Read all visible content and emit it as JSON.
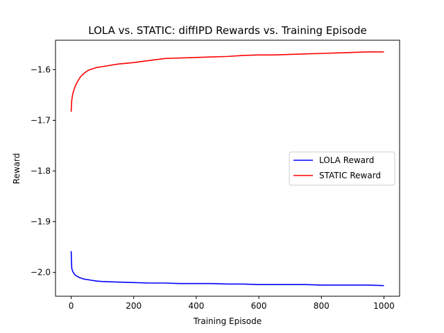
{
  "chart_data": {
    "type": "line",
    "title": "LOLA vs. STATIC: diffIPD Rewards vs. Training Episode",
    "xlabel": "Training Episode",
    "ylabel": "Reward",
    "xlim": [
      -50,
      1050
    ],
    "ylim": [
      -2.047,
      -1.542
    ],
    "xticks": [
      0,
      200,
      400,
      600,
      800,
      1000
    ],
    "xtick_labels": [
      "0",
      "200",
      "400",
      "600",
      "800",
      "1000"
    ],
    "yticks": [
      -2.0,
      -1.9,
      -1.8,
      -1.7,
      -1.6
    ],
    "ytick_labels": [
      "−2.0",
      "−1.9",
      "−1.8",
      "−1.7",
      "−1.6"
    ],
    "grid": false,
    "legend_position": "center-right",
    "series": [
      {
        "name": "LOLA Reward",
        "color": "#0000ff",
        "x": [
          0,
          2,
          5,
          10,
          15,
          20,
          30,
          40,
          50,
          60,
          80,
          100,
          150,
          200,
          250,
          300,
          350,
          400,
          450,
          500,
          550,
          600,
          650,
          700,
          750,
          800,
          850,
          900,
          950,
          1000
        ],
        "y": [
          -1.958,
          -1.992,
          -1.998,
          -2.003,
          -2.006,
          -2.008,
          -2.011,
          -2.013,
          -2.014,
          -2.015,
          -2.017,
          -2.018,
          -2.019,
          -2.02,
          -2.021,
          -2.021,
          -2.022,
          -2.022,
          -2.022,
          -2.023,
          -2.023,
          -2.024,
          -2.024,
          -2.024,
          -2.024,
          -2.025,
          -2.025,
          -2.025,
          -2.025,
          -2.026
        ]
      },
      {
        "name": "STATIC Reward",
        "color": "#ff0000",
        "x": [
          0,
          2,
          5,
          10,
          15,
          20,
          30,
          40,
          50,
          60,
          80,
          100,
          150,
          200,
          250,
          300,
          350,
          400,
          450,
          500,
          550,
          600,
          650,
          700,
          750,
          800,
          850,
          900,
          950,
          1000
        ],
        "y": [
          -1.683,
          -1.66,
          -1.648,
          -1.638,
          -1.63,
          -1.624,
          -1.614,
          -1.608,
          -1.603,
          -1.6,
          -1.596,
          -1.594,
          -1.589,
          -1.586,
          -1.582,
          -1.578,
          -1.577,
          -1.576,
          -1.575,
          -1.574,
          -1.572,
          -1.571,
          -1.571,
          -1.57,
          -1.569,
          -1.568,
          -1.567,
          -1.566,
          -1.565,
          -1.565
        ]
      }
    ]
  }
}
